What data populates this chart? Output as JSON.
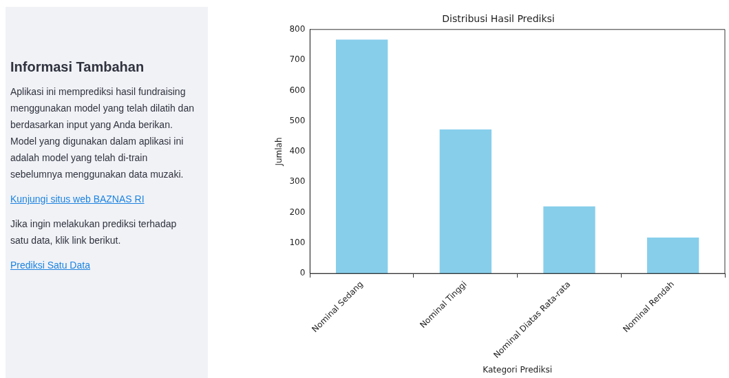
{
  "chart_data": [
    {
      "type": "other",
      "title": "Informasi Tambahan",
      "annotations": [
        "Aplikasi ini memprediksi hasil fundraising menggunakan model yang telah dilatih dan berdasarkan input yang Anda berikan. Model yang digunakan dalam aplikasi ini adalah model yang telah di-train sebelumnya menggunakan data muzaki.",
        "Kunjungi situs web BAZNAS RI",
        "Jika ingin melakukan prediksi terhadap satu data, klik link berikut.",
        "Prediksi Satu Data"
      ]
    },
    {
      "type": "bar",
      "title": "Distribusi Hasil Prediksi",
      "xlabel": "Kategori Prediksi",
      "ylabel": "Jumlah",
      "categories": [
        "Nominal Sedang",
        "Nominal Tinggi",
        "Nominal Diatas Rata-rata",
        "Nominal Rendah"
      ],
      "values": [
        767,
        472,
        220,
        118
      ],
      "color": "#87ceeb",
      "ylim": [
        0,
        800
      ],
      "yticks": [
        0,
        100,
        200,
        300,
        400,
        500,
        600,
        700,
        800
      ],
      "grid": false,
      "legend": false
    }
  ]
}
